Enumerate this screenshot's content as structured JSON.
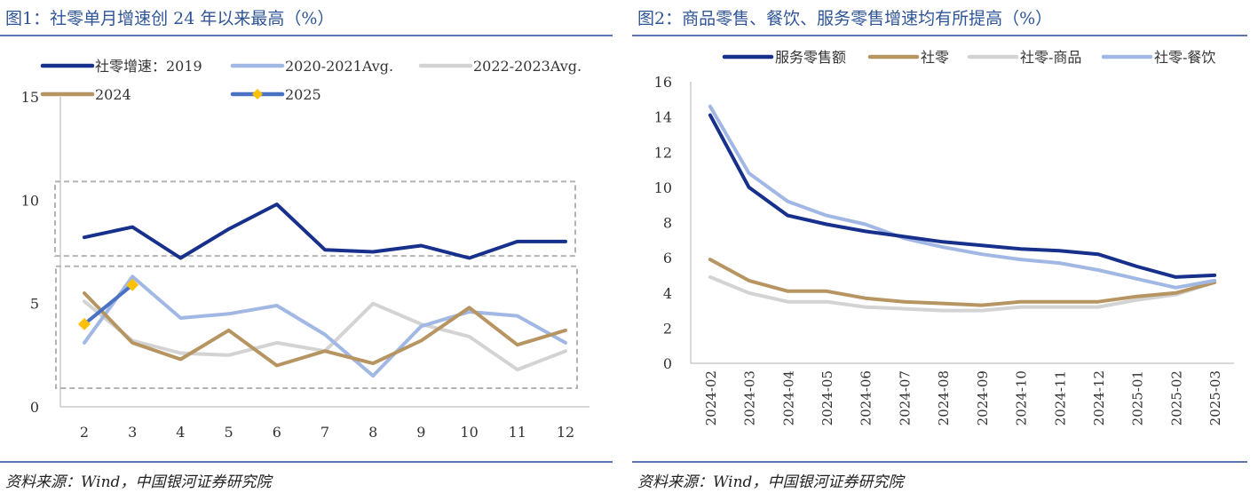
{
  "left": {
    "title": "图1：社零单月增速创 24 年以来最高（%）",
    "source": "资料来源：Wind，中国银河证券研究院"
  },
  "right": {
    "title": "图2：商品零售、餐饮、服务零售增速均有所提高（%）",
    "source": "资料来源：Wind，中国银河证券研究院"
  },
  "chart_data": [
    {
      "type": "line",
      "x": [
        2,
        3,
        4,
        5,
        6,
        7,
        8,
        9,
        10,
        11,
        12
      ],
      "ylim": [
        0,
        15
      ],
      "yticks": [
        0,
        5,
        10,
        15
      ],
      "legend_position": "top",
      "series": [
        {
          "name": "社零增速：2019",
          "color": "#16308c",
          "values": [
            8.2,
            8.7,
            7.2,
            8.6,
            9.8,
            7.6,
            7.5,
            7.8,
            7.2,
            8.0,
            8.0
          ]
        },
        {
          "name": "2020-2021Avg.",
          "color": "#a2b8e4",
          "values": [
            3.1,
            6.3,
            4.3,
            4.5,
            4.9,
            3.5,
            1.5,
            3.9,
            4.6,
            4.4,
            3.1
          ]
        },
        {
          "name": "2022-2023Avg.",
          "color": "#d3d3d3",
          "values": [
            5.1,
            3.2,
            2.6,
            2.5,
            3.1,
            2.7,
            5.0,
            4.0,
            3.4,
            1.8,
            2.7
          ]
        },
        {
          "name": "2024",
          "color": "#b79562",
          "values": [
            5.5,
            3.1,
            2.3,
            3.7,
            2.0,
            2.7,
            2.1,
            3.2,
            4.8,
            3.0,
            3.7
          ]
        },
        {
          "name": "2025",
          "color": "#4a72c4",
          "marker_color": "#ffc000",
          "x": [
            2,
            3
          ],
          "values": [
            4.0,
            5.9
          ]
        }
      ],
      "annotations": [
        "dashed box around 2019 series",
        "dashed box around 2020-2025 series"
      ]
    },
    {
      "type": "line",
      "categories": [
        "2024-02",
        "2024-03",
        "2024-04",
        "2024-05",
        "2024-06",
        "2024-07",
        "2024-08",
        "2024-09",
        "2024-10",
        "2024-11",
        "2024-12",
        "2025-01",
        "2025-02",
        "2025-03"
      ],
      "ylim": [
        0,
        16
      ],
      "yticks": [
        0,
        2,
        4,
        6,
        8,
        10,
        12,
        14,
        16
      ],
      "legend_position": "top",
      "series": [
        {
          "name": "服务零售额",
          "color": "#16308c",
          "values": [
            14.1,
            10.0,
            8.4,
            7.9,
            7.5,
            7.2,
            6.9,
            6.7,
            6.5,
            6.4,
            6.2,
            5.5,
            4.9,
            5.0
          ]
        },
        {
          "name": "社零",
          "color": "#b79562",
          "values": [
            5.9,
            4.7,
            4.1,
            4.1,
            3.7,
            3.5,
            3.4,
            3.3,
            3.5,
            3.5,
            3.5,
            3.8,
            4.0,
            4.6
          ]
        },
        {
          "name": "社零-商品",
          "color": "#d3d3d3",
          "values": [
            4.9,
            4.0,
            3.5,
            3.5,
            3.2,
            3.1,
            3.0,
            3.0,
            3.2,
            3.2,
            3.2,
            3.6,
            3.9,
            4.6
          ]
        },
        {
          "name": "社零-餐饮",
          "color": "#a2b8e4",
          "values": [
            14.6,
            10.8,
            9.2,
            8.4,
            7.9,
            7.1,
            6.6,
            6.2,
            5.9,
            5.7,
            5.3,
            4.8,
            4.3,
            4.7
          ]
        }
      ]
    }
  ]
}
